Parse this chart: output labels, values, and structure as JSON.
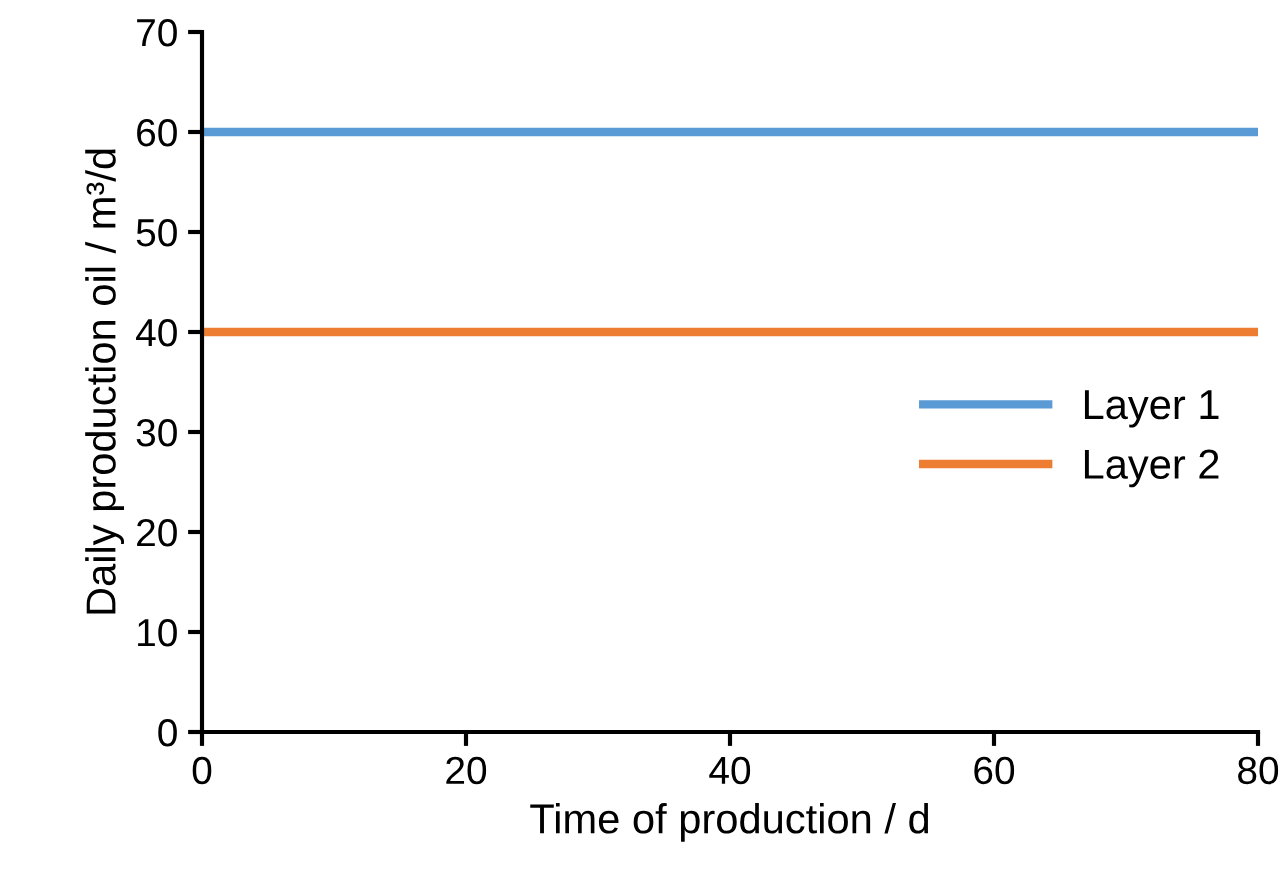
{
  "chart_data": {
    "type": "line",
    "xlabel": "Time of production / d",
    "ylabel": "Daily production oil / m³/d",
    "x": [
      0,
      80
    ],
    "series": [
      {
        "name": "Layer 1",
        "color": "#5b9bd5",
        "values": [
          60,
          60
        ]
      },
      {
        "name": "Layer 2",
        "color": "#ed7d31",
        "values": [
          40,
          40
        ]
      }
    ],
    "xlim": [
      0,
      80
    ],
    "xticks": [
      0,
      20,
      40,
      60,
      80
    ],
    "ylim": [
      0,
      70
    ],
    "yticks": [
      0,
      10,
      20,
      30,
      40,
      50,
      60,
      70
    ],
    "grid": false,
    "legend": "right",
    "marker": "none",
    "line_style": "solid"
  }
}
